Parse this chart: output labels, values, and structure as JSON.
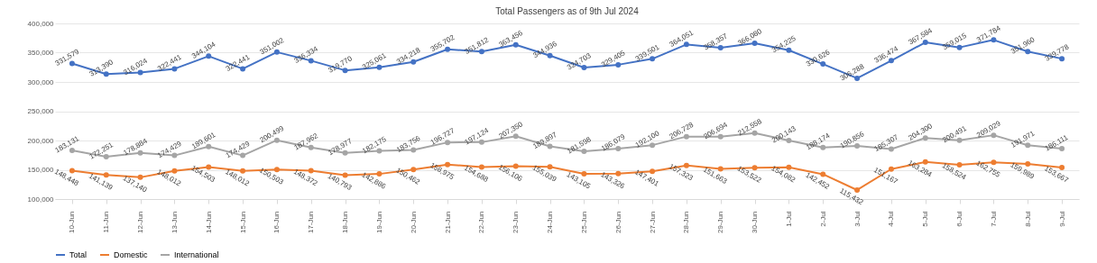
{
  "chart_data": {
    "type": "line",
    "title": "Total Passengers as of 9th Jul 2024",
    "categories": [
      "10-Jun",
      "11-Jun",
      "12-Jun",
      "13-Jun",
      "14-Jun",
      "15-Jun",
      "16-Jun",
      "17-Jun",
      "18-Jun",
      "19-Jun",
      "20-Jun",
      "21-Jun",
      "22-Jun",
      "23-Jun",
      "24-Jun",
      "25-Jun",
      "26-Jun",
      "27-Jun",
      "28-Jun",
      "29-Jun",
      "30-Jun",
      "1-Jul",
      "2-Jul",
      "3-Jul",
      "4-Jul",
      "5-Jul",
      "6-Jul",
      "7-Jul",
      "8-Jul",
      "9-Jul"
    ],
    "series": [
      {
        "name": "Total",
        "color": "#4472c4",
        "values": [
          331579,
          313390,
          316024,
          322441,
          344104,
          322441,
          351002,
          336334,
          319770,
          325061,
          334218,
          355702,
          351812,
          363456,
          344936,
          324703,
          329405,
          339501,
          364051,
          358357,
          366080,
          354225,
          330626,
          306288,
          336474,
          367584,
          359015,
          371784,
          351960,
          339778
        ],
        "value_labels": [
          "331,579",
          "313,390",
          "316,024",
          "322,441",
          "344,104",
          "322,441",
          "351,002",
          "336,334",
          "319,770",
          "325,061",
          "334,218",
          "355,702",
          "351,812",
          "363,456",
          "344,936",
          "324,703",
          "329,405",
          "339,501",
          "364,051",
          "358,357",
          "366,080",
          "354,225",
          "330,626",
          "306,288",
          "336,474",
          "367,584",
          "359,015",
          "371,784",
          "351,960",
          "339,778"
        ]
      },
      {
        "name": "Domestic",
        "color": "#ed7d31",
        "values": [
          148448,
          141139,
          137140,
          148012,
          154503,
          148012,
          150503,
          148372,
          140793,
          142886,
          150462,
          158975,
          154688,
          156106,
          155039,
          143105,
          143326,
          147401,
          157323,
          151663,
          153522,
          154082,
          142452,
          115432,
          151167,
          163284,
          158524,
          162755,
          159989,
          153667
        ],
        "value_labels": [
          "148,448",
          "141,139",
          "137,140",
          "148,012",
          "154,503",
          "148,012",
          "150,503",
          "148,372",
          "140,793",
          "142,886",
          "150,462",
          "158,975",
          "154,688",
          "156,106",
          "155,039",
          "143,105",
          "143,326",
          "147,401",
          "157,323",
          "151,663",
          "153,522",
          "154,082",
          "142,452",
          "115,432",
          "151,167",
          "163,284",
          "158,524",
          "162,755",
          "159,989",
          "153,667"
        ]
      },
      {
        "name": "International",
        "color": "#a5a5a5",
        "values": [
          183131,
          172251,
          178884,
          174429,
          189601,
          174429,
          200499,
          187962,
          178977,
          182175,
          183756,
          196727,
          197124,
          207350,
          189897,
          181598,
          186079,
          192100,
          206728,
          206694,
          212558,
          200143,
          188174,
          190856,
          185307,
          204300,
          200491,
          209029,
          191971,
          186111
        ],
        "value_labels": [
          "183,131",
          "172,251",
          "178,884",
          "174,429",
          "189,601",
          "174,429",
          "200,499",
          "187,962",
          "178,977",
          "182,175",
          "183,756",
          "196,727",
          "197,124",
          "207,350",
          "189,897",
          "181,598",
          "186,079",
          "192,100",
          "206,728",
          "206,694",
          "212,558",
          "200,143",
          "188,174",
          "190,856",
          "185,307",
          "204,300",
          "200,491",
          "209,029",
          "191,971",
          "186,111"
        ]
      }
    ],
    "ylim": [
      100000,
      400000
    ],
    "yticks": [
      {
        "value": 100000,
        "label": "100,000"
      },
      {
        "value": 150000,
        "label": "150,000"
      },
      {
        "value": 200000,
        "label": "200,000"
      },
      {
        "value": 250000,
        "label": "250,000"
      },
      {
        "value": 300000,
        "label": "300,000"
      },
      {
        "value": 350000,
        "label": "350,000"
      },
      {
        "value": 400000,
        "label": "400,000"
      }
    ],
    "grid": "y",
    "legend": "bottom",
    "marker": "circle",
    "line_style": "solid"
  }
}
